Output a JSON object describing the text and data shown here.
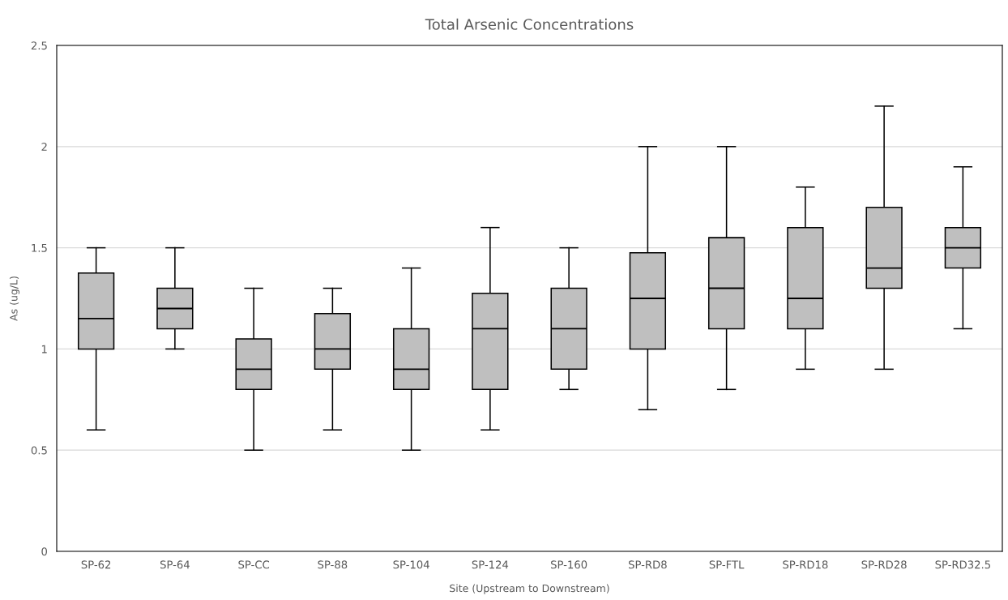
{
  "chart_data": {
    "type": "box",
    "title": "Total Arsenic Concentrations",
    "xlabel": "Site (Upstream to Downstream)",
    "ylabel": "As (ug/L)",
    "categories": [
      "SP-62",
      "SP-64",
      "SP-CC",
      "SP-88",
      "SP-104",
      "SP-124",
      "SP-160",
      "SP-RD8",
      "SP-FTL",
      "SP-RD18",
      "SP-RD28",
      "SP-RD32.5"
    ],
    "boxes": [
      {
        "low": 0.6,
        "q1": 1.0,
        "median": 1.15,
        "q3": 1.375,
        "high": 1.5
      },
      {
        "low": 1.0,
        "q1": 1.1,
        "median": 1.2,
        "q3": 1.3,
        "high": 1.5
      },
      {
        "low": 0.5,
        "q1": 0.8,
        "median": 0.9,
        "q3": 1.05,
        "high": 1.3
      },
      {
        "low": 0.6,
        "q1": 0.9,
        "median": 1.0,
        "q3": 1.175,
        "high": 1.3
      },
      {
        "low": 0.5,
        "q1": 0.8,
        "median": 0.9,
        "q3": 1.1,
        "high": 1.4
      },
      {
        "low": 0.6,
        "q1": 0.8,
        "median": 1.1,
        "q3": 1.275,
        "high": 1.6
      },
      {
        "low": 0.8,
        "q1": 0.9,
        "median": 1.1,
        "q3": 1.3,
        "high": 1.5
      },
      {
        "low": 0.7,
        "q1": 1.0,
        "median": 1.25,
        "q3": 1.475,
        "high": 2.0
      },
      {
        "low": 0.8,
        "q1": 1.1,
        "median": 1.3,
        "q3": 1.55,
        "high": 2.0
      },
      {
        "low": 0.9,
        "q1": 1.1,
        "median": 1.25,
        "q3": 1.6,
        "high": 1.8
      },
      {
        "low": 0.9,
        "q1": 1.3,
        "median": 1.4,
        "q3": 1.7,
        "high": 2.2
      },
      {
        "low": 1.1,
        "q1": 1.4,
        "median": 1.5,
        "q3": 1.6,
        "high": 1.9
      }
    ],
    "color": "#bfbfbf",
    "ylim": [
      0,
      2.5
    ],
    "yticks": [
      0,
      0.5,
      1,
      1.5,
      2,
      2.5
    ],
    "grid": "y"
  }
}
